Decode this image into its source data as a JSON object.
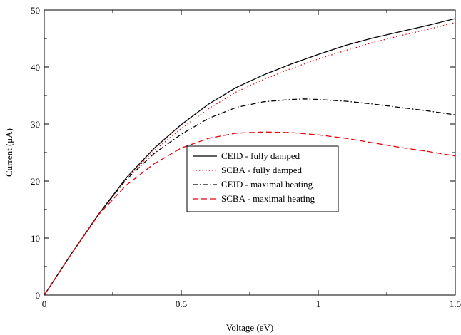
{
  "chart_data": {
    "type": "line",
    "title": "",
    "xlabel": "Voltage (eV)",
    "ylabel": "Current (μA)",
    "xlim": [
      0,
      1.5
    ],
    "ylim": [
      0,
      50
    ],
    "x_ticks": [
      0,
      0.5,
      1,
      1.5
    ],
    "x_tick_labels": [
      "0",
      "0.5",
      "1",
      "1.5"
    ],
    "y_ticks": [
      0,
      10,
      20,
      30,
      40,
      50
    ],
    "y_tick_labels": [
      "0",
      "10",
      "20",
      "30",
      "40",
      "50"
    ],
    "grid": false,
    "legend_position": "center",
    "series": [
      {
        "name": "CEID - fully damped",
        "color": "#000000",
        "style": "solid",
        "x": [
          0,
          0.1,
          0.2,
          0.3,
          0.4,
          0.5,
          0.6,
          0.7,
          0.8,
          0.9,
          1.0,
          1.1,
          1.2,
          1.3,
          1.4,
          1.5
        ],
        "y": [
          0,
          7.3,
          14.3,
          20.6,
          25.7,
          29.9,
          33.5,
          36.4,
          38.6,
          40.5,
          42.2,
          43.8,
          45.1,
          46.2,
          47.3,
          48.5
        ]
      },
      {
        "name": "SCBA - fully damped",
        "color": "#e8000b",
        "style": "dotted",
        "x": [
          0,
          0.1,
          0.2,
          0.3,
          0.4,
          0.5,
          0.6,
          0.7,
          0.8,
          0.9,
          1.0,
          1.1,
          1.2,
          1.3,
          1.4,
          1.5
        ],
        "y": [
          0,
          7.3,
          14.3,
          20.4,
          25.3,
          29.2,
          32.7,
          35.6,
          37.8,
          39.7,
          41.4,
          42.9,
          44.3,
          45.5,
          46.6,
          47.8
        ]
      },
      {
        "name": "CEID - maximal heating",
        "color": "#000000",
        "style": "dashdot",
        "x": [
          0,
          0.1,
          0.2,
          0.3,
          0.4,
          0.5,
          0.6,
          0.7,
          0.8,
          0.9,
          0.95,
          1.0,
          1.1,
          1.2,
          1.3,
          1.4,
          1.5
        ],
        "y": [
          0,
          7.3,
          14.3,
          20.3,
          24.8,
          28.2,
          31.0,
          32.9,
          33.9,
          34.3,
          34.4,
          34.3,
          34.0,
          33.5,
          32.9,
          32.3,
          31.6
        ]
      },
      {
        "name": "SCBA - maximal heating",
        "color": "#e8000b",
        "style": "dashed",
        "x": [
          0,
          0.1,
          0.2,
          0.3,
          0.4,
          0.5,
          0.6,
          0.7,
          0.8,
          0.9,
          1.0,
          1.1,
          1.2,
          1.3,
          1.4,
          1.5
        ],
        "y": [
          0,
          7.3,
          14.2,
          19.3,
          23.0,
          25.8,
          27.5,
          28.4,
          28.6,
          28.5,
          28.1,
          27.5,
          26.7,
          25.9,
          25.2,
          24.4
        ]
      }
    ]
  }
}
